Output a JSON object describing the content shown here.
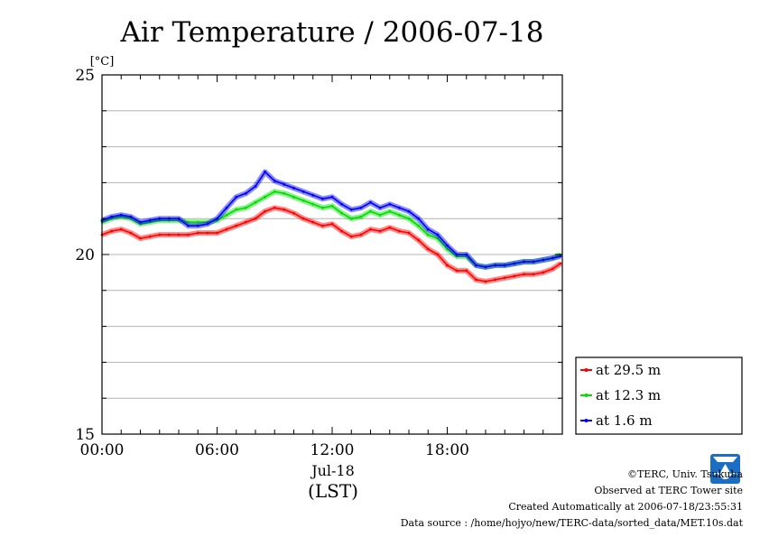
{
  "chart_data": {
    "type": "line",
    "title": "Air Temperature / 2006-07-18",
    "ylabel": "[°C]",
    "ylim": [
      15,
      25
    ],
    "yticks": [
      "15",
      "20",
      "25"
    ],
    "xlim": [
      0,
      24
    ],
    "xticks": [
      {
        "hour": 0,
        "label": "00:00"
      },
      {
        "hour": 6,
        "label": "06:00"
      },
      {
        "hour": 12,
        "label": "12:00"
      },
      {
        "hour": 18,
        "label": "18:00"
      }
    ],
    "date_label": "Jul-18",
    "timezone_label": "(LST)",
    "grid": true,
    "legend_position": "right-bottom",
    "series": [
      {
        "name": "at 29.5 m",
        "color": "#ff0000",
        "x": [
          0,
          0.5,
          1,
          1.5,
          2,
          2.5,
          3,
          3.5,
          4,
          4.5,
          5,
          5.5,
          6,
          6.5,
          7,
          7.5,
          8,
          8.5,
          9,
          9.5,
          10,
          10.5,
          11,
          11.5,
          12,
          12.5,
          13,
          13.5,
          14,
          14.5,
          15,
          15.5,
          16,
          16.5,
          17,
          17.5,
          18,
          18.5,
          19,
          19.5,
          20,
          20.5,
          21,
          21.5,
          22,
          22.5,
          23,
          23.5,
          23.9
        ],
        "y": [
          20.55,
          20.65,
          20.7,
          20.6,
          20.45,
          20.5,
          20.55,
          20.55,
          20.55,
          20.55,
          20.6,
          20.6,
          20.6,
          20.7,
          20.8,
          20.9,
          21.0,
          21.2,
          21.3,
          21.25,
          21.15,
          21.0,
          20.9,
          20.8,
          20.85,
          20.65,
          20.5,
          20.55,
          20.7,
          20.65,
          20.75,
          20.65,
          20.6,
          20.4,
          20.15,
          20.0,
          19.7,
          19.55,
          19.55,
          19.3,
          19.25,
          19.3,
          19.35,
          19.4,
          19.45,
          19.45,
          19.5,
          19.6,
          19.75
        ]
      },
      {
        "name": "at 12.3 m",
        "color": "#00dd00",
        "x": [
          0,
          0.5,
          1,
          1.5,
          2,
          2.5,
          3,
          3.5,
          4,
          4.5,
          5,
          5.5,
          6,
          6.5,
          7,
          7.5,
          8,
          8.5,
          9,
          9.5,
          10,
          10.5,
          11,
          11.5,
          12,
          12.5,
          13,
          13.5,
          14,
          14.5,
          15,
          15.5,
          16,
          16.5,
          17,
          17.5,
          18,
          18.5,
          19,
          19.5,
          20,
          20.5,
          21,
          21.5,
          22,
          22.5,
          23,
          23.5,
          23.9
        ],
        "y": [
          20.9,
          21.0,
          21.05,
          21.0,
          20.85,
          20.9,
          20.95,
          20.95,
          20.95,
          20.9,
          20.9,
          20.9,
          20.95,
          21.1,
          21.25,
          21.3,
          21.45,
          21.6,
          21.75,
          21.7,
          21.6,
          21.5,
          21.4,
          21.3,
          21.35,
          21.15,
          21.0,
          21.05,
          21.2,
          21.1,
          21.2,
          21.1,
          21.0,
          20.8,
          20.55,
          20.45,
          20.15,
          19.95,
          19.95,
          19.7,
          19.65,
          19.7,
          19.7,
          19.75,
          19.8,
          19.8,
          19.85,
          19.9,
          20.0
        ]
      },
      {
        "name": "at 1.6 m",
        "color": "#0000ff",
        "x": [
          0,
          0.5,
          1,
          1.5,
          2,
          2.5,
          3,
          3.5,
          4,
          4.5,
          5,
          5.5,
          6,
          6.5,
          7,
          7.5,
          8,
          8.5,
          9,
          9.5,
          10,
          10.5,
          11,
          11.5,
          12,
          12.5,
          13,
          13.5,
          14,
          14.5,
          15,
          15.5,
          16,
          16.5,
          17,
          17.5,
          18,
          18.5,
          19,
          19.5,
          20,
          20.5,
          21,
          21.5,
          22,
          22.5,
          23,
          23.5,
          23.9
        ],
        "y": [
          20.95,
          21.05,
          21.1,
          21.05,
          20.9,
          20.95,
          21.0,
          21.0,
          21.0,
          20.8,
          20.8,
          20.85,
          21.0,
          21.3,
          21.6,
          21.7,
          21.9,
          22.3,
          22.05,
          21.95,
          21.85,
          21.75,
          21.65,
          21.55,
          21.6,
          21.4,
          21.25,
          21.3,
          21.45,
          21.3,
          21.4,
          21.3,
          21.2,
          21.0,
          20.7,
          20.55,
          20.25,
          20.0,
          20.0,
          19.7,
          19.65,
          19.7,
          19.7,
          19.75,
          19.8,
          19.8,
          19.85,
          19.9,
          19.95
        ]
      }
    ]
  },
  "footer": {
    "copyright": "©TERC, Univ. Tsukuba",
    "site": "Observed at TERC Tower site",
    "created": "Created Automatically at 2006-07-18/23:55:31",
    "source": "Data source : /home/hojyo/new/TERC-data/sorted_data/MET.10s.dat"
  },
  "logo": {
    "text": "TERC",
    "color": "#1a6fc4"
  }
}
